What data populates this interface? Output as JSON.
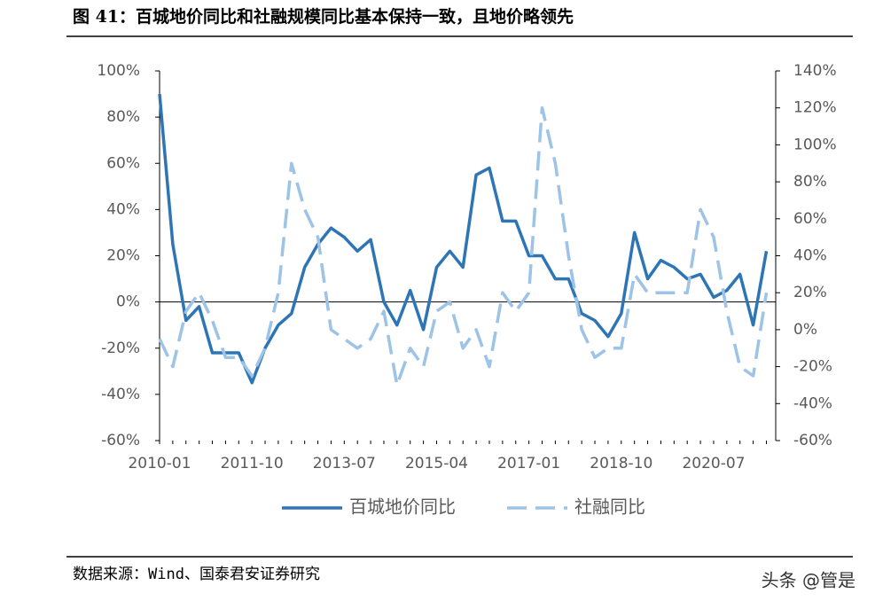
{
  "chart_data": {
    "type": "line",
    "title": "图 41：百城地价同比和社融规模同比基本保持一致，且地价略领先",
    "source": "数据来源：Wind、国泰君安证券研究",
    "watermark": "头条 @管是",
    "x": [
      "2010-01",
      null,
      null,
      null,
      null,
      null,
      null,
      "2011-10",
      null,
      null,
      null,
      null,
      null,
      null,
      "2013-07",
      null,
      null,
      null,
      null,
      null,
      null,
      "2015-04",
      null,
      null,
      null,
      null,
      null,
      null,
      "2017-01",
      null,
      null,
      null,
      null,
      null,
      null,
      "2018-10",
      null,
      null,
      null,
      null,
      null,
      null,
      "2020-07",
      null,
      null,
      null,
      null
    ],
    "ylim": [
      -60,
      100
    ],
    "yticks": [
      {
        "value": -60,
        "label": "-60%"
      },
      {
        "value": -40,
        "label": "-40%"
      },
      {
        "value": -20,
        "label": "-20%"
      },
      {
        "value": 0,
        "label": "0%"
      },
      {
        "value": 20,
        "label": "20%"
      },
      {
        "value": 40,
        "label": "40%"
      },
      {
        "value": 60,
        "label": "60%"
      },
      {
        "value": 80,
        "label": "80%"
      },
      {
        "value": 100,
        "label": "100%"
      }
    ],
    "y2lim": [
      -60,
      140
    ],
    "y2ticks": [
      {
        "value": -60,
        "label": "-60%"
      },
      {
        "value": -40,
        "label": "-40%"
      },
      {
        "value": -20,
        "label": "-20%"
      },
      {
        "value": 0,
        "label": "0%"
      },
      {
        "value": 20,
        "label": "20%"
      },
      {
        "value": 40,
        "label": "40%"
      },
      {
        "value": 60,
        "label": "60%"
      },
      {
        "value": 80,
        "label": "80%"
      },
      {
        "value": 100,
        "label": "100%"
      },
      {
        "value": 120,
        "label": "120%"
      },
      {
        "value": 140,
        "label": "140%"
      }
    ],
    "series": [
      {
        "name": "百城地价同比",
        "color": "#2e75b6",
        "dashed": false,
        "values": [
          90,
          25,
          -8,
          -2,
          -22,
          -22,
          -22,
          -35,
          -20,
          -10,
          -5,
          15,
          25,
          32,
          28,
          22,
          27,
          0,
          -10,
          5,
          -12,
          15,
          22,
          15,
          55,
          58,
          35,
          35,
          20,
          20,
          10,
          10,
          -5,
          -8,
          -15,
          -5,
          30,
          10,
          18,
          15,
          10,
          12,
          2,
          5,
          12,
          -10,
          22
        ]
      },
      {
        "name": "社融同比",
        "color": "#9dc3e6",
        "dashed": true,
        "axis": "y2",
        "values": [
          -5,
          -20,
          10,
          20,
          5,
          -15,
          -15,
          -25,
          -10,
          20,
          90,
          65,
          50,
          0,
          -5,
          -10,
          -5,
          10,
          -30,
          -10,
          -20,
          10,
          15,
          -10,
          0,
          -20,
          20,
          10,
          20,
          120,
          90,
          40,
          0,
          -15,
          -10,
          -10,
          30,
          20,
          20,
          20,
          20,
          65,
          50,
          10,
          -20,
          -25,
          20
        ]
      }
    ]
  }
}
